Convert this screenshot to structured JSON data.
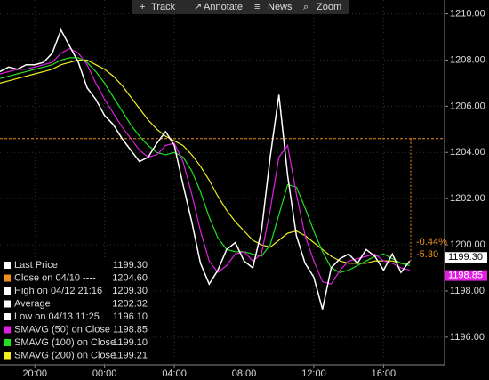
{
  "toolbar": {
    "items": [
      "Track",
      "Annotate",
      "News",
      "Zoom"
    ]
  },
  "chart_data": {
    "type": "line",
    "x": [
      18,
      18.5,
      19,
      19.5,
      20,
      20.5,
      21,
      21.5,
      22,
      22.5,
      23,
      23.5,
      24,
      24.5,
      25,
      25.5,
      26,
      26.5,
      27,
      27.5,
      28,
      28.5,
      29,
      29.5,
      30,
      30.5,
      31,
      31.5,
      32,
      32.5,
      33,
      33.5,
      34,
      34.5,
      35,
      35.5,
      36,
      36.5,
      37,
      37.5,
      38,
      38.5,
      39,
      39.5,
      40,
      40.5,
      41,
      41.5
    ],
    "series": [
      {
        "name": "Last Price",
        "color": "#ffffff",
        "last_label": "1199.30",
        "values": [
          1207.5,
          1207.7,
          1207.6,
          1207.8,
          1207.8,
          1207.9,
          1208.3,
          1209.3,
          1208.6,
          1207.9,
          1206.8,
          1206.3,
          1205.6,
          1205.2,
          1204.6,
          1204.1,
          1203.6,
          1203.8,
          1204.4,
          1204.9,
          1204.3,
          1202.6,
          1201.0,
          1199.2,
          1198.3,
          1198.9,
          1199.8,
          1200.1,
          1199.3,
          1199.0,
          1200.6,
          1203.8,
          1206.5,
          1203.0,
          1200.4,
          1199.2,
          1198.6,
          1197.2,
          1199.0,
          1199.4,
          1199.6,
          1199.2,
          1199.8,
          1199.5,
          1198.9,
          1199.6,
          1198.8,
          1199.3
        ]
      },
      {
        "name": "SMAVG (50) on Close",
        "color": "#e020e0",
        "last_label": "1198.85",
        "values": [
          1207.4,
          1207.5,
          1207.6,
          1207.6,
          1207.7,
          1207.8,
          1207.9,
          1208.3,
          1208.5,
          1208.3,
          1207.8,
          1207.0,
          1206.3,
          1205.7,
          1205.1,
          1204.6,
          1204.1,
          1203.8,
          1203.9,
          1204.3,
          1204.4,
          1203.6,
          1202.2,
          1200.6,
          1199.3,
          1198.8,
          1199.1,
          1199.6,
          1199.7,
          1199.3,
          1199.6,
          1201.5,
          1203.8,
          1204.3,
          1202.2,
          1200.4,
          1199.3,
          1198.4,
          1198.3,
          1198.9,
          1199.3,
          1199.4,
          1199.5,
          1199.6,
          1199.3,
          1199.2,
          1199.0,
          1198.9
        ]
      },
      {
        "name": "SMAVG (100) on Close",
        "color": "#20e020",
        "last_label": "1199.10",
        "values": [
          1207.2,
          1207.3,
          1207.4,
          1207.5,
          1207.6,
          1207.7,
          1207.8,
          1208.0,
          1208.1,
          1208.1,
          1207.9,
          1207.5,
          1207.0,
          1206.4,
          1205.8,
          1205.2,
          1204.7,
          1204.3,
          1204.0,
          1203.9,
          1204.0,
          1203.8,
          1203.2,
          1202.3,
          1201.2,
          1200.3,
          1199.8,
          1199.7,
          1199.7,
          1199.6,
          1199.5,
          1200.0,
          1201.3,
          1202.6,
          1202.5,
          1201.6,
          1200.6,
          1199.7,
          1199.0,
          1198.8,
          1198.9,
          1199.1,
          1199.3,
          1199.5,
          1199.6,
          1199.4,
          1199.2,
          1199.1
        ]
      },
      {
        "name": "SMAVG (200) on Close",
        "color": "#f0f020",
        "last_label": "1199.21",
        "values": [
          1207.0,
          1207.1,
          1207.2,
          1207.3,
          1207.4,
          1207.5,
          1207.6,
          1207.8,
          1207.9,
          1208.0,
          1208.0,
          1207.8,
          1207.6,
          1207.3,
          1206.9,
          1206.4,
          1205.9,
          1205.4,
          1205.0,
          1204.7,
          1204.5,
          1204.3,
          1203.9,
          1203.4,
          1202.8,
          1202.1,
          1201.5,
          1201.0,
          1200.6,
          1200.2,
          1200.0,
          1199.9,
          1200.2,
          1200.5,
          1200.6,
          1200.4,
          1200.1,
          1199.8,
          1199.5,
          1199.3,
          1199.2,
          1199.2,
          1199.2,
          1199.3,
          1199.3,
          1199.3,
          1199.2,
          1199.2
        ]
      }
    ],
    "stats": [
      {
        "label": "Close on 04/10 ----",
        "value": "1204.60",
        "color": "#f0901e"
      },
      {
        "label": "High on 04/12 21:16",
        "value": "1209.30",
        "color": "#ffffff"
      },
      {
        "label": "Average",
        "value": "1202.32",
        "color": "#ffffff"
      },
      {
        "label": "Low on 04/13 11:25",
        "value": "1196.10",
        "color": "#ffffff"
      }
    ],
    "ref_line": {
      "value": 1204.6,
      "color": "#f0901e"
    },
    "change_labels": [
      "-0.44%",
      "-5.30"
    ],
    "xlim": [
      18,
      43.5
    ],
    "ylim": [
      1194.8,
      1210.6
    ],
    "xticks": [
      {
        "value": 20,
        "label": "20:00"
      },
      {
        "value": 24,
        "label": "00:00"
      },
      {
        "value": 28,
        "label": "04:00"
      },
      {
        "value": 32,
        "label": "08:00"
      },
      {
        "value": 36,
        "label": "12:00"
      },
      {
        "value": 40,
        "label": "16:00"
      }
    ],
    "yticks": [
      {
        "value": 1196,
        "label": "1196.00"
      },
      {
        "value": 1198,
        "label": "1198.00"
      },
      {
        "value": 1200,
        "label": "1200.00"
      },
      {
        "value": 1202,
        "label": "1202.00"
      },
      {
        "value": 1204,
        "label": "1204.00"
      },
      {
        "value": 1206,
        "label": "1206.00"
      },
      {
        "value": 1208,
        "label": "1208.00"
      },
      {
        "value": 1210,
        "label": "1210.00"
      }
    ],
    "grid": true
  }
}
